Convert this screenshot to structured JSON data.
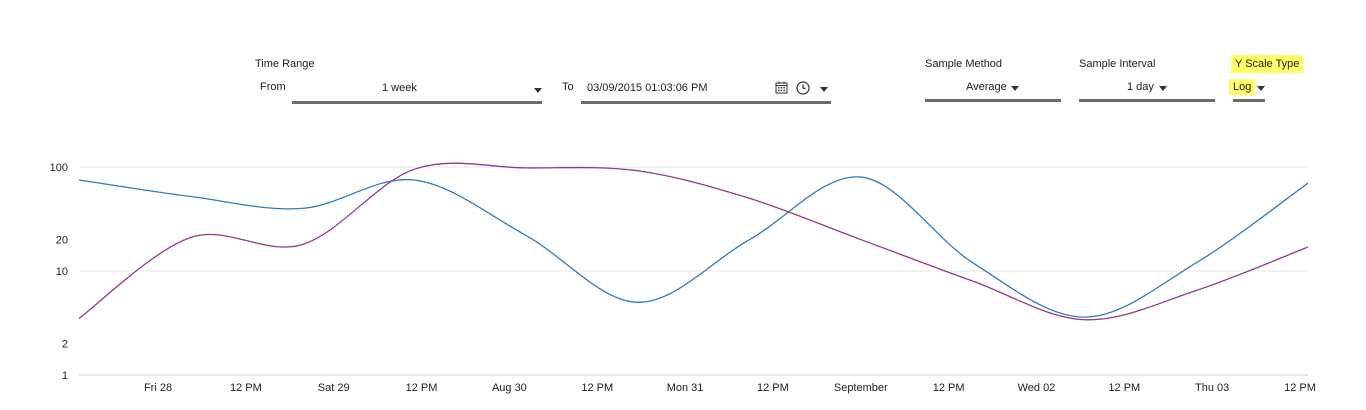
{
  "controls": {
    "time_range_label": "Time Range",
    "from_label": "From",
    "from_value": "1 week",
    "to_label": "To",
    "to_value": "03/09/2015 01:03:06 PM",
    "sample_method_label": "Sample Method",
    "sample_method_value": "Average",
    "sample_interval_label": "Sample Interval",
    "sample_interval_value": "1 day",
    "y_scale_label": "Y Scale Type",
    "y_scale_value": "Log",
    "icons": [
      "calendar-icon",
      "clock-icon",
      "chevron-down-icon"
    ],
    "highlight_color": "#ffff66"
  },
  "chart_data": {
    "type": "line",
    "yscale": "log",
    "ylim": [
      1,
      100
    ],
    "yticks": [
      1,
      2,
      10,
      20,
      100
    ],
    "ytick_labels": [
      "1",
      "2",
      "10",
      "20",
      "100"
    ],
    "x_tick_labels": [
      "Fri 28",
      "12 PM",
      "Sat 29",
      "12 PM",
      "Aug 30",
      "12 PM",
      "Mon 31",
      "12 PM",
      "September",
      "12 PM",
      "Wed 02",
      "12 PM",
      "Thu 03",
      "12 PM"
    ],
    "x": [
      "Fri 28",
      "Sat 29",
      "Aug 30",
      "12 PM",
      "Mon 31",
      "12 PM",
      "September",
      "12 PM",
      "Wed 02",
      "12 PM",
      "Thu 03",
      "12 PM"
    ],
    "grid": true,
    "series": [
      {
        "color": "#2e7cb8",
        "values": [
          75,
          52,
          40,
          75,
          22,
          5,
          20,
          80,
          12,
          3.6,
          12,
          70
        ]
      },
      {
        "color": "#8e3b8e",
        "values": [
          3.5,
          21,
          18,
          95,
          98,
          92,
          50,
          20,
          8,
          3.4,
          6.5,
          17
        ]
      }
    ]
  }
}
